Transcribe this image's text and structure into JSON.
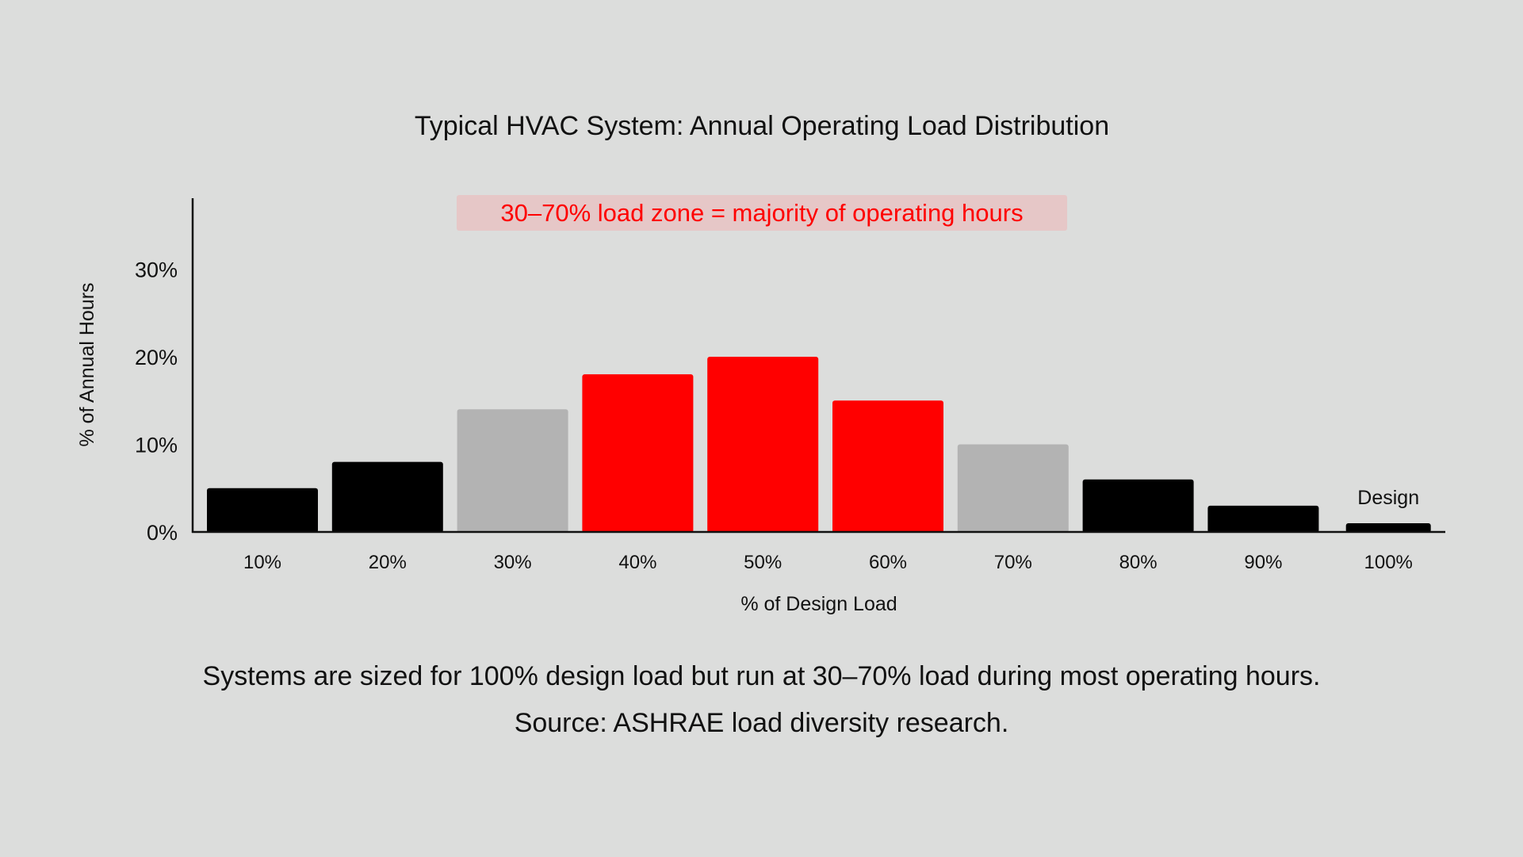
{
  "chart_data": {
    "type": "bar",
    "title": "Typical HVAC System: Annual Operating Load Distribution",
    "xlabel": "% of Design Load",
    "ylabel": "% of Annual Hours",
    "categories": [
      "10%",
      "20%",
      "30%",
      "40%",
      "50%",
      "60%",
      "70%",
      "80%",
      "90%",
      "100%"
    ],
    "values": [
      5,
      8,
      14,
      18,
      20,
      15,
      10,
      6,
      3,
      1
    ],
    "bar_colors": [
      "#000000",
      "#000000",
      "#b3b3b3",
      "#ff0000",
      "#ff0000",
      "#ff0000",
      "#b3b3b3",
      "#000000",
      "#000000",
      "#000000"
    ],
    "ylim": [
      0,
      38
    ],
    "yticks": [
      0,
      10,
      20,
      30
    ],
    "ytick_labels": [
      "0%",
      "10%",
      "20%",
      "30%"
    ],
    "grid": false,
    "annotations": [
      {
        "text": "30–70% load zone = majority of operating hours",
        "color": "#ff0000",
        "background": "#e6c7c7"
      },
      {
        "text": "Design",
        "category": "100%"
      }
    ]
  },
  "caption": {
    "line1": "Systems are sized for 100% design load but run at 30–70% load during most operating hours.",
    "line2": "Source: ASHRAE load diversity research."
  },
  "colors": {
    "background": "#dcdddc",
    "black_bar": "#000000",
    "gray_bar": "#b3b3b3",
    "red_bar": "#ff0000",
    "annotation_box": "#e6c7c7"
  }
}
